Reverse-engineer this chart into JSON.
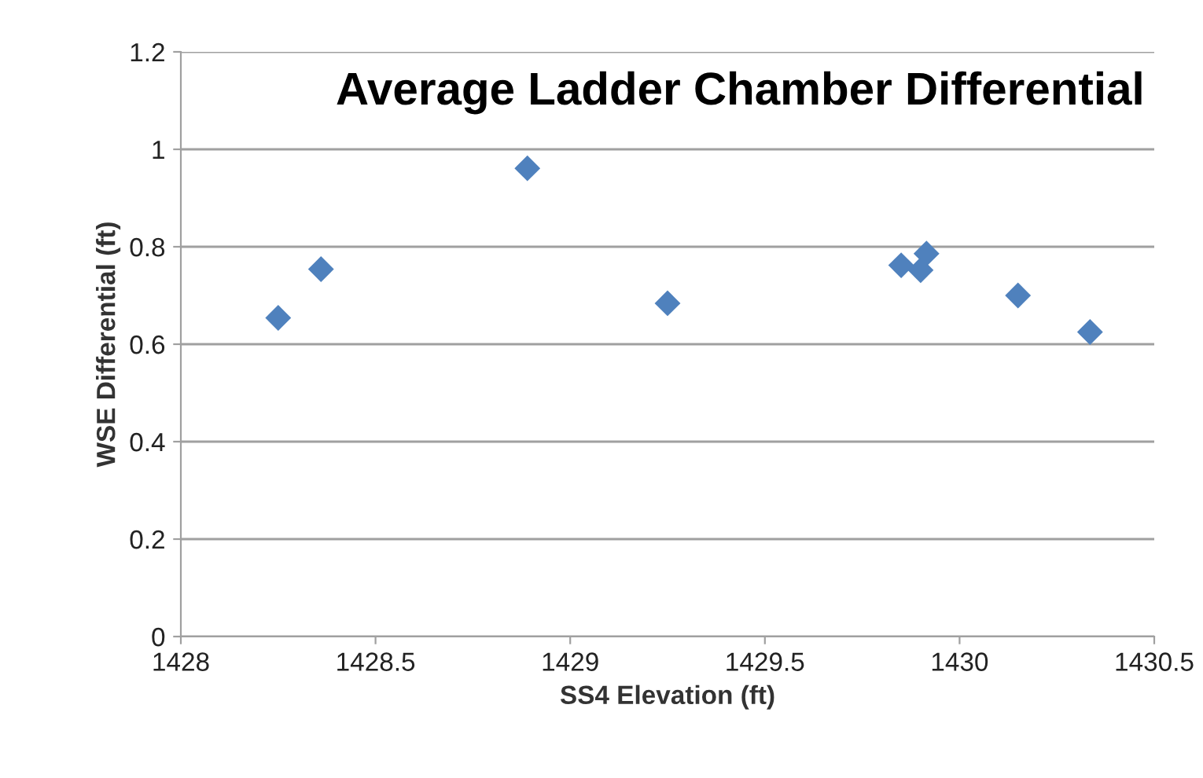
{
  "chart_data": {
    "type": "scatter",
    "title": "Average Ladder Chamber Differential",
    "xlabel": "SS4 Elevation (ft)",
    "ylabel": "WSE Differential (ft)",
    "series": [
      {
        "color": "#4f81bd",
        "x": [
          1428.25,
          1428.36,
          1428.89,
          1429.25,
          1429.85,
          1429.9,
          1429.915,
          1430.15,
          1430.335
        ],
        "values": [
          0.654,
          0.754,
          0.961,
          0.684,
          0.762,
          0.752,
          0.786,
          0.7,
          0.625
        ]
      }
    ],
    "xlim": [
      1428,
      1430.5
    ],
    "xticks": [
      1428,
      1428.5,
      1429,
      1429.5,
      1430,
      1430.5
    ],
    "ylim": [
      0,
      1.2
    ],
    "yticks": [
      0,
      0.2,
      0.4,
      0.6,
      0.8,
      1,
      1.2
    ],
    "grid": "y",
    "marker": "diamond",
    "legend": false
  }
}
